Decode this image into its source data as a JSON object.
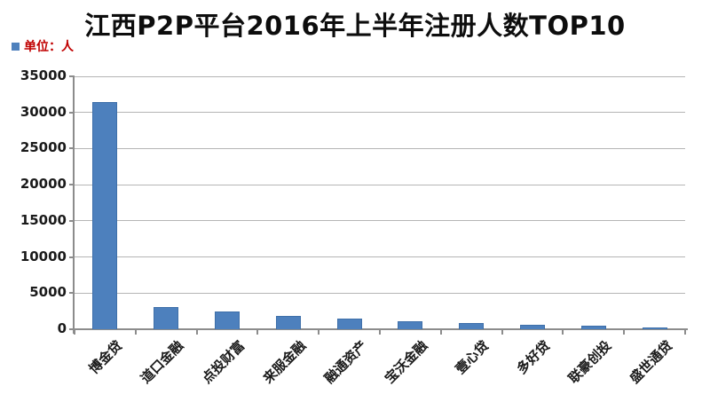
{
  "legend": {
    "label": "单位：人",
    "swatch_color": "#4F81BD",
    "text_color": "#C00000"
  },
  "chart_data": {
    "type": "bar",
    "title": "江西P2P平台2016年上半年注册人数TOP10",
    "categories": [
      "博金贷",
      "道口金融",
      "点投财富",
      "来服金融",
      "融通资产",
      "宝沃金融",
      "壹心贷",
      "多好贷",
      "联豪创投",
      "盛世通贷"
    ],
    "values": [
      31500,
      3100,
      2500,
      1900,
      1500,
      1050,
      900,
      600,
      450,
      300
    ],
    "series_name": "单位：人",
    "xlabel": "",
    "ylabel": "",
    "ylim": [
      0,
      35000
    ],
    "yticks": [
      0,
      5000,
      10000,
      15000,
      20000,
      25000,
      30000,
      35000
    ],
    "grid": true,
    "legend_position": "top-left"
  },
  "colors": {
    "bar_fill": "#4D80BD",
    "bar_border": "#3E6FA9",
    "gridline": "#B5B5B5",
    "axis": "#8C8C8C",
    "tick_label": "#1a1a1a",
    "title": "#0d0d0d",
    "background": "#FFFFFF"
  }
}
